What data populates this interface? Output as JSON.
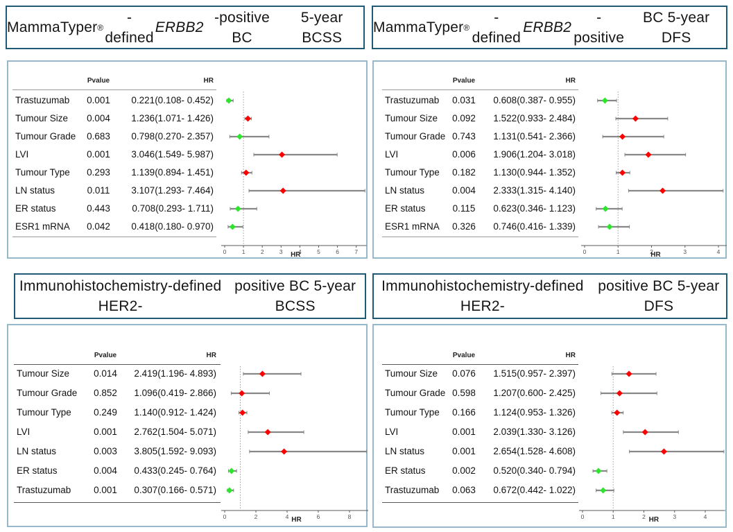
{
  "columns": {
    "pvalue": "Pvalue",
    "hr": "HR"
  },
  "style": {
    "hr_above_1_color": "#ff0000",
    "hr_below_1_color": "#2ee52e",
    "ci_line_color": "#878787",
    "ref_line_color": "#9b9b9b",
    "axis_color": "#5a5a5a",
    "title_border_color": "#1e5a74",
    "panel_border_color": "#95b9cb"
  },
  "chart_data": [
    {
      "type": "forest",
      "title": "MammaTyper®-defined ERBB2-positive BC 5-year BCSS",
      "title_segments": [
        {
          "t": "MammaTyper"
        },
        {
          "t": "®",
          "sup": true
        },
        {
          "t": "-defined "
        },
        {
          "t": "ERBB2",
          "italic": true
        },
        {
          "t": "-positive BC"
        },
        {
          "br": true
        },
        {
          "t": "5-year BCSS"
        }
      ],
      "xlabel": "HR",
      "ref_line": 1,
      "ticks": [
        0,
        1,
        2,
        3,
        4,
        5,
        6,
        7
      ],
      "xlim": [
        0,
        7.55
      ],
      "rows": [
        {
          "label": "Trastuzumab",
          "pvalue": "0.001",
          "hr_text": "0.221(0.108- 0.452)",
          "hr": 0.221,
          "ci": [
            0.108,
            0.452
          ]
        },
        {
          "label": "Tumour Size",
          "pvalue": "0.004",
          "hr_text": "1.236(1.071- 1.426)",
          "hr": 1.236,
          "ci": [
            1.071,
            1.426
          ]
        },
        {
          "label": "Tumour Grade",
          "pvalue": "0.683",
          "hr_text": "0.798(0.270- 2.357)",
          "hr": 0.798,
          "ci": [
            0.27,
            2.357
          ]
        },
        {
          "label": "LVI",
          "pvalue": "0.001",
          "hr_text": "3.046(1.549- 5.987)",
          "hr": 3.046,
          "ci": [
            1.549,
            5.987
          ]
        },
        {
          "label": "Tumour Type",
          "pvalue": "0.293",
          "hr_text": "1.139(0.894- 1.451)",
          "hr": 1.139,
          "ci": [
            0.894,
            1.451
          ]
        },
        {
          "label": "LN status",
          "pvalue": "0.011",
          "hr_text": "3.107(1.293- 7.464)",
          "hr": 3.107,
          "ci": [
            1.293,
            7.464
          ]
        },
        {
          "label": "ER status",
          "pvalue": "0.443",
          "hr_text": "0.708(0.293- 1.711)",
          "hr": 0.708,
          "ci": [
            0.293,
            1.711
          ]
        },
        {
          "label": "ESR1 mRNA",
          "pvalue": "0.042",
          "hr_text": "0.418(0.180- 0.970)",
          "hr": 0.418,
          "ci": [
            0.18,
            0.97
          ]
        }
      ]
    },
    {
      "type": "forest",
      "title": "MammaTyper®-defined ERBB2-positive BC 5-year DFS",
      "title_segments": [
        {
          "t": "MammaTyper"
        },
        {
          "t": "®",
          "sup": true
        },
        {
          "t": "-defined "
        },
        {
          "t": "ERBB2",
          "italic": true
        },
        {
          "t": "-positive"
        },
        {
          "br": true
        },
        {
          "t": "BC 5-year DFS"
        }
      ],
      "xlabel": "HR",
      "ref_line": 1,
      "ticks": [
        0,
        1,
        2,
        3,
        4
      ],
      "xlim": [
        0,
        4.25
      ],
      "rows": [
        {
          "label": "Trastuzumab",
          "pvalue": "0.031",
          "hr_text": "0.608(0.387- 0.955)",
          "hr": 0.608,
          "ci": [
            0.387,
            0.955
          ]
        },
        {
          "label": "Tumour Size",
          "pvalue": "0.092",
          "hr_text": "1.522(0.933- 2.484)",
          "hr": 1.522,
          "ci": [
            0.933,
            2.484
          ]
        },
        {
          "label": "Tumour Grade",
          "pvalue": "0.743",
          "hr_text": "1.131(0.541- 2.366)",
          "hr": 1.131,
          "ci": [
            0.541,
            2.366
          ]
        },
        {
          "label": "LVI",
          "pvalue": "0.006",
          "hr_text": "1.906(1.204- 3.018)",
          "hr": 1.906,
          "ci": [
            1.204,
            3.018
          ]
        },
        {
          "label": "Tumour Type",
          "pvalue": "0.182",
          "hr_text": "1.130(0.944- 1.352)",
          "hr": 1.13,
          "ci": [
            0.944,
            1.352
          ]
        },
        {
          "label": "LN status",
          "pvalue": "0.004",
          "hr_text": "2.333(1.315- 4.140)",
          "hr": 2.333,
          "ci": [
            1.315,
            4.14
          ]
        },
        {
          "label": "ER status",
          "pvalue": "0.115",
          "hr_text": "0.623(0.346- 1.123)",
          "hr": 0.623,
          "ci": [
            0.346,
            1.123
          ]
        },
        {
          "label": "ESR1 mRNA",
          "pvalue": "0.326",
          "hr_text": "0.746(0.416- 1.339)",
          "hr": 0.746,
          "ci": [
            0.416,
            1.339
          ]
        }
      ]
    },
    {
      "type": "forest",
      "title": "Immunohistochemistry-defined HER2-positive BC 5-year BCSS",
      "title_segments": [
        {
          "t": "Immunohistochemistry-defined HER2-"
        },
        {
          "br": true
        },
        {
          "t": "positive BC 5-year BCSS"
        }
      ],
      "xlabel": "HR",
      "ref_line": 1,
      "ticks": [
        0,
        2,
        4,
        6,
        8
      ],
      "xlim": [
        0,
        9.2
      ],
      "rows": [
        {
          "label": "Tumour Size",
          "pvalue": "0.014",
          "hr_text": "2.419(1.196- 4.893)",
          "hr": 2.419,
          "ci": [
            1.196,
            4.893
          ]
        },
        {
          "label": "Tumour Grade",
          "pvalue": "0.852",
          "hr_text": "1.096(0.419- 2.866)",
          "hr": 1.096,
          "ci": [
            0.419,
            2.866
          ]
        },
        {
          "label": "Tumour Type",
          "pvalue": "0.249",
          "hr_text": "1.140(0.912- 1.424)",
          "hr": 1.14,
          "ci": [
            0.912,
            1.424
          ]
        },
        {
          "label": "LVI",
          "pvalue": "0.001",
          "hr_text": "2.762(1.504- 5.071)",
          "hr": 2.762,
          "ci": [
            1.504,
            5.071
          ]
        },
        {
          "label": "LN status",
          "pvalue": "0.003",
          "hr_text": "3.805(1.592- 9.093)",
          "hr": 3.805,
          "ci": [
            1.592,
            9.093
          ]
        },
        {
          "label": "ER status",
          "pvalue": "0.004",
          "hr_text": "0.433(0.245- 0.764)",
          "hr": 0.433,
          "ci": [
            0.245,
            0.764
          ]
        },
        {
          "label": "Trastuzumab",
          "pvalue": "0.001",
          "hr_text": "0.307(0.166- 0.571)",
          "hr": 0.307,
          "ci": [
            0.166,
            0.571
          ]
        }
      ]
    },
    {
      "type": "forest",
      "title": "Immunohistochemistry-defined HER2-positive BC 5-year DFS",
      "title_segments": [
        {
          "t": "Immunohistochemistry-defined HER2-"
        },
        {
          "br": true
        },
        {
          "t": "positive BC 5-year DFS"
        }
      ],
      "xlabel": "HR",
      "ref_line": 1,
      "ticks": [
        0,
        1,
        2,
        3,
        4
      ],
      "xlim": [
        0,
        4.65
      ],
      "rows": [
        {
          "label": "Tumour Size",
          "pvalue": "0.076",
          "hr_text": "1.515(0.957- 2.397)",
          "hr": 1.515,
          "ci": [
            0.957,
            2.397
          ]
        },
        {
          "label": "Tumour Grade",
          "pvalue": "0.598",
          "hr_text": "1.207(0.600- 2.425)",
          "hr": 1.207,
          "ci": [
            0.6,
            2.425
          ]
        },
        {
          "label": "Tumour Type",
          "pvalue": "0.166",
          "hr_text": "1.124(0.953- 1.326)",
          "hr": 1.124,
          "ci": [
            0.953,
            1.326
          ]
        },
        {
          "label": "LVI",
          "pvalue": "0.001",
          "hr_text": "2.039(1.330- 3.126)",
          "hr": 2.039,
          "ci": [
            1.33,
            3.126
          ]
        },
        {
          "label": "LN status",
          "pvalue": "0.001",
          "hr_text": "2.654(1.528- 4.608)",
          "hr": 2.654,
          "ci": [
            1.528,
            4.608
          ]
        },
        {
          "label": "ER status",
          "pvalue": "0.002",
          "hr_text": "0.520(0.340- 0.794)",
          "hr": 0.52,
          "ci": [
            0.34,
            0.794
          ]
        },
        {
          "label": "Trastuzumab",
          "pvalue": "0.063",
          "hr_text": "0.672(0.442- 1.022)",
          "hr": 0.672,
          "ci": [
            0.442,
            1.022
          ]
        }
      ]
    }
  ]
}
